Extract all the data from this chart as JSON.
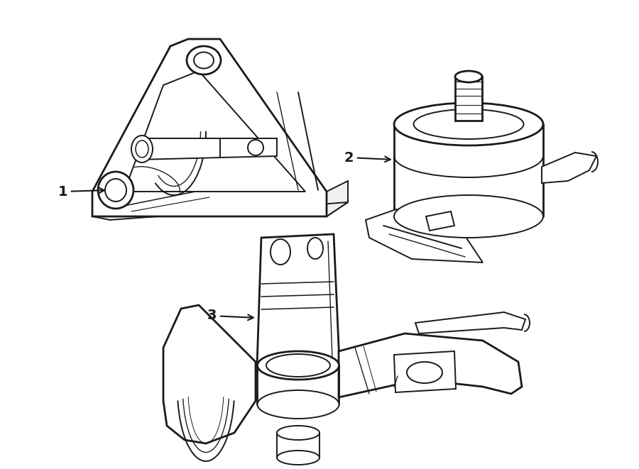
{
  "bg_color": "#ffffff",
  "line_color": "#1a1a1a",
  "lw": 1.4,
  "lw_thick": 2.0,
  "figsize": [
    9.0,
    6.61
  ],
  "dpi": 100,
  "xlim": [
    0,
    900
  ],
  "ylim": [
    0,
    661
  ]
}
